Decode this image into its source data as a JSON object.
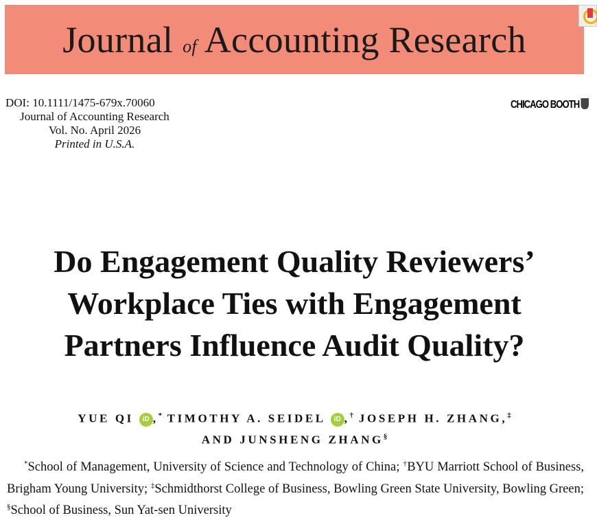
{
  "banner": {
    "title_part1": "Journal",
    "title_of": "of",
    "title_part2": "Accounting Research",
    "color": "#f28b78"
  },
  "corner_icon": "bookmark-badge-icon",
  "meta": {
    "doi": "DOI: 10.1111/1475-679x.70060",
    "journal": "Journal of Accounting Research",
    "volume": "Vol. No. April 2026",
    "printed": "Printed in U.S.A."
  },
  "publisher_logo": "CHICAGO BOOTH",
  "article": {
    "title_lines": [
      "Do Engagement Quality Reviewers’",
      "Workplace Ties with Engagement",
      "Partners Influence Audit Quality?"
    ]
  },
  "authors": [
    {
      "name": "YUE QI",
      "orcid": "iD",
      "mark": "*"
    },
    {
      "name": "TIMOTHY A. SEIDEL",
      "orcid": "iD",
      "mark": "†"
    },
    {
      "name": "JOSEPH H. ZHANG,",
      "mark": "‡"
    },
    {
      "prefix": "AND",
      "name": "JUNSHENG ZHANG",
      "mark": "§"
    }
  ],
  "affiliations": [
    {
      "mark": "*",
      "text": "School of Management, University of Science and Technology of China; "
    },
    {
      "mark": "†",
      "text": "BYU Marriott School of Business, Brigham Young University; "
    },
    {
      "mark": "‡",
      "text": "Schmidthorst College of Business, Bowling Green State University, Bowling Green; "
    },
    {
      "mark": "§",
      "text": "School of Business, Sun Yat-sen University"
    }
  ]
}
